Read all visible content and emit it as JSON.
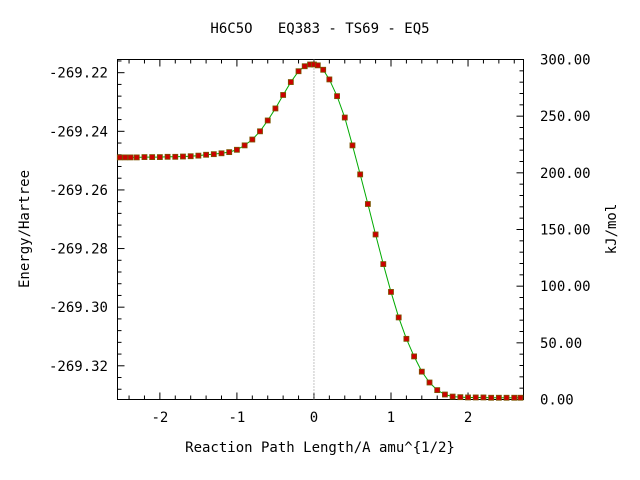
{
  "chart_data": {
    "type": "line",
    "title": "H6C5O   EQ383 - TS69 - EQ5",
    "xlabel": "Reaction Path Length/A amu^{1/2}",
    "ylabel": "Energy/Hartree",
    "y2label": "kJ/mol",
    "xlim": [
      -2.55,
      2.72
    ],
    "ylim": [
      -269.3315,
      -269.2155
    ],
    "y2lim": [
      0,
      300
    ],
    "x_ticks": [
      -2,
      -1,
      0,
      1,
      2
    ],
    "x_tick_labels": [
      "-2",
      "-1",
      "0",
      "1",
      "2"
    ],
    "y_ticks": [
      -269.22,
      -269.24,
      -269.26,
      -269.28,
      -269.3,
      -269.32
    ],
    "y_tick_labels": [
      "-269.22",
      "-269.24",
      "-269.26",
      "-269.28",
      "-269.30",
      "-269.32"
    ],
    "y2_ticks": [
      300,
      250,
      200,
      150,
      100,
      50,
      0
    ],
    "y2_tick_labels": [
      "300.00",
      "250.00",
      "200.00",
      "150.00",
      "100.00",
      "50.00",
      "0.00"
    ],
    "ts_marker_x": 0,
    "colors": {
      "line": "#00aa00",
      "marker": "#cc0000",
      "marker_edge": "#7a5500",
      "ts_line": "#888888"
    },
    "grid": false,
    "series": [
      {
        "x": [
          -2.52,
          -2.45,
          -2.38,
          -2.3,
          -2.2,
          -2.1,
          -2.0,
          -1.9,
          -1.8,
          -1.7,
          -1.6,
          -1.5,
          -1.4,
          -1.3,
          -1.2,
          -1.1,
          -1.0,
          -0.9,
          -0.8,
          -0.7,
          -0.6,
          -0.5,
          -0.4,
          -0.3,
          -0.2,
          -0.12,
          -0.05,
          0.0,
          0.05,
          0.12,
          0.2,
          0.3,
          0.4,
          0.5,
          0.6,
          0.7,
          0.8,
          0.9,
          1.0,
          1.1,
          1.2,
          1.3,
          1.4,
          1.5,
          1.6,
          1.7,
          1.8,
          1.9,
          2.0,
          2.1,
          2.2,
          2.3,
          2.4,
          2.5,
          2.6,
          2.68
        ],
        "y": [
          -269.2489,
          -269.2489,
          -269.2489,
          -269.2489,
          -269.2488,
          -269.2488,
          -269.2488,
          -269.2487,
          -269.2487,
          -269.2486,
          -269.2485,
          -269.2483,
          -269.248,
          -269.2478,
          -269.2475,
          -269.2471,
          -269.2463,
          -269.2448,
          -269.2428,
          -269.24,
          -269.2363,
          -269.2322,
          -269.2276,
          -269.2232,
          -269.2195,
          -269.2178,
          -269.2172,
          -269.2172,
          -269.2175,
          -269.219,
          -269.2223,
          -269.228,
          -269.2353,
          -269.2448,
          -269.2547,
          -269.2648,
          -269.2752,
          -269.2853,
          -269.2948,
          -269.3035,
          -269.3108,
          -269.3168,
          -269.322,
          -269.3257,
          -269.3283,
          -269.3298,
          -269.3305,
          -269.3307,
          -269.3308,
          -269.3308,
          -269.3308,
          -269.3309,
          -269.3309,
          -269.3309,
          -269.3309,
          -269.3309
        ]
      }
    ]
  }
}
